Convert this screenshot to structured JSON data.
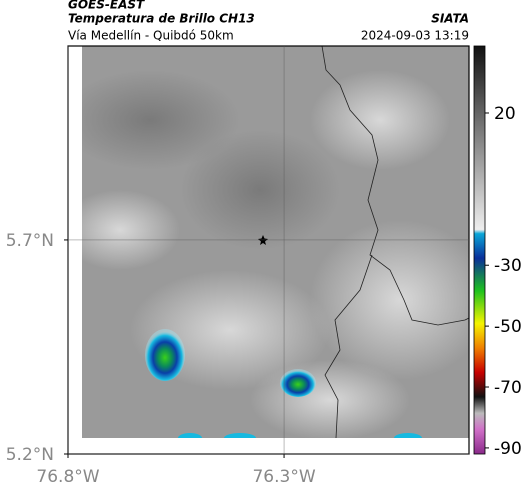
{
  "header": {
    "satellite": "GOES-EAST",
    "product": "Temperatura de Brillo CH13",
    "region": "Vía Medellín - Quibdó 50km",
    "source": "SIATA",
    "timestamp": "2024-09-03 13:19"
  },
  "map": {
    "xlim": [
      -76.8,
      -75.872
    ],
    "ylim": [
      5.2,
      6.153
    ],
    "xticks": [
      {
        "value": -76.8,
        "label": "76.8°W"
      },
      {
        "value": -76.3,
        "label": "76.3°W"
      }
    ],
    "yticks": [
      {
        "value": 5.2,
        "label": "5.2°N"
      },
      {
        "value": 5.7,
        "label": "5.7°N"
      }
    ],
    "grid": true
  },
  "colorbar": {
    "lim": [
      -92,
      42
    ],
    "ticks": [
      20,
      -30,
      -50,
      -70,
      -90
    ]
  }
}
